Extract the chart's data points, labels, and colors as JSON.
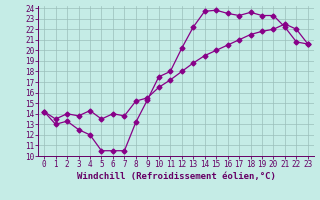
{
  "xlabel": "Windchill (Refroidissement éolien,°C)",
  "bg_color": "#c5ece6",
  "line_color": "#880088",
  "xlim": [
    -0.5,
    23.5
  ],
  "ylim": [
    10,
    24.2
  ],
  "xticks": [
    0,
    1,
    2,
    3,
    4,
    5,
    6,
    7,
    8,
    9,
    10,
    11,
    12,
    13,
    14,
    15,
    16,
    17,
    18,
    19,
    20,
    21,
    22,
    23
  ],
  "yticks": [
    10,
    11,
    12,
    13,
    14,
    15,
    16,
    17,
    18,
    19,
    20,
    21,
    22,
    23,
    24
  ],
  "curve1_x": [
    0,
    1,
    2,
    3,
    4,
    5,
    6,
    7,
    8,
    9,
    10,
    11,
    12,
    13,
    14,
    15,
    16,
    17,
    18,
    19,
    20,
    21,
    22,
    23
  ],
  "curve1_y": [
    14.2,
    13.0,
    13.3,
    12.5,
    12.0,
    10.5,
    10.5,
    10.5,
    13.2,
    15.3,
    17.5,
    18.0,
    20.2,
    22.2,
    23.7,
    23.8,
    23.5,
    23.3,
    23.6,
    23.3,
    23.3,
    22.2,
    20.8,
    20.6
  ],
  "curve2_x": [
    0,
    1,
    2,
    3,
    4,
    5,
    6,
    7,
    8,
    9,
    10,
    11,
    12,
    13,
    14,
    15,
    16,
    17,
    18,
    19,
    20,
    21,
    22,
    23
  ],
  "curve2_y": [
    14.2,
    13.5,
    14.0,
    13.8,
    14.3,
    13.5,
    14.0,
    13.8,
    15.2,
    15.5,
    16.5,
    17.2,
    18.0,
    18.8,
    19.5,
    20.0,
    20.5,
    21.0,
    21.5,
    21.8,
    22.0,
    22.5,
    22.0,
    20.6
  ],
  "marker_size": 2.5,
  "grid_color": "#9bbfba",
  "tick_fontsize": 5.5,
  "label_fontsize": 6.5
}
